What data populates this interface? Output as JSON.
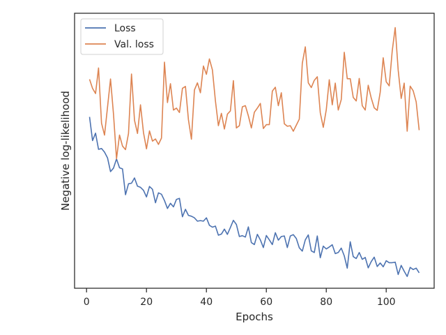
{
  "chart_data": {
    "type": "line",
    "title": "",
    "xlabel": "Epochs",
    "ylabel": "Negative log-likelihood",
    "xlim": [
      -4,
      116
    ],
    "ylim": [
      0,
      1
    ],
    "xticks": [
      0,
      20,
      40,
      60,
      80,
      100
    ],
    "yticks": [],
    "grid": false,
    "legend": "top-left",
    "series": [
      {
        "name": "Loss",
        "color": "#4c72b0",
        "x": [
          1,
          2,
          3,
          4,
          5,
          6,
          7,
          8,
          9,
          10,
          11,
          12,
          13,
          14,
          15,
          16,
          17,
          18,
          19,
          20,
          21,
          22,
          23,
          24,
          25,
          26,
          27,
          28,
          29,
          30,
          31,
          32,
          33,
          34,
          35,
          36,
          37,
          38,
          39,
          40,
          41,
          42,
          43,
          44,
          45,
          46,
          47,
          48,
          49,
          50,
          51,
          52,
          53,
          54,
          55,
          56,
          57,
          58,
          59,
          60,
          61,
          62,
          63,
          64,
          65,
          66,
          67,
          68,
          69,
          70,
          71,
          72,
          73,
          74,
          75,
          76,
          77,
          78,
          79,
          80,
          81,
          82,
          83,
          84,
          85,
          86,
          87,
          88,
          89,
          90,
          91,
          92,
          93,
          94,
          95,
          96,
          97,
          98,
          99,
          100,
          101,
          102,
          103,
          104,
          105,
          106,
          107,
          108,
          109,
          110,
          111
        ],
        "values": [
          0.623,
          0.537,
          0.564,
          0.505,
          0.508,
          0.495,
          0.474,
          0.424,
          0.437,
          0.47,
          0.438,
          0.434,
          0.34,
          0.38,
          0.382,
          0.401,
          0.371,
          0.367,
          0.356,
          0.332,
          0.37,
          0.36,
          0.311,
          0.347,
          0.342,
          0.319,
          0.29,
          0.309,
          0.296,
          0.323,
          0.327,
          0.26,
          0.287,
          0.265,
          0.262,
          0.256,
          0.244,
          0.246,
          0.244,
          0.256,
          0.229,
          0.222,
          0.226,
          0.193,
          0.197,
          0.215,
          0.196,
          0.221,
          0.247,
          0.232,
          0.188,
          0.191,
          0.186,
          0.223,
          0.166,
          0.159,
          0.196,
          0.176,
          0.148,
          0.192,
          0.176,
          0.159,
          0.202,
          0.175,
          0.188,
          0.19,
          0.148,
          0.19,
          0.195,
          0.181,
          0.147,
          0.135,
          0.176,
          0.194,
          0.136,
          0.13,
          0.19,
          0.111,
          0.153,
          0.143,
          0.15,
          0.158,
          0.126,
          0.13,
          0.146,
          0.118,
          0.073,
          0.169,
          0.115,
          0.108,
          0.13,
          0.105,
          0.112,
          0.074,
          0.097,
          0.113,
          0.079,
          0.092,
          0.078,
          0.1,
          0.093,
          0.093,
          0.095,
          0.05,
          0.083,
          0.062,
          0.043,
          0.076,
          0.068,
          0.073,
          0.056
        ]
      },
      {
        "name": "Val. loss",
        "color": "#dd8452",
        "x": [
          1,
          2,
          3,
          4,
          5,
          6,
          7,
          8,
          9,
          10,
          11,
          12,
          13,
          14,
          15,
          16,
          17,
          18,
          19,
          20,
          21,
          22,
          23,
          24,
          25,
          26,
          27,
          28,
          29,
          30,
          31,
          32,
          33,
          34,
          35,
          36,
          37,
          38,
          39,
          40,
          41,
          42,
          43,
          44,
          45,
          46,
          47,
          48,
          49,
          50,
          51,
          52,
          53,
          54,
          55,
          56,
          57,
          58,
          59,
          60,
          61,
          62,
          63,
          64,
          65,
          66,
          67,
          68,
          69,
          70,
          71,
          72,
          73,
          74,
          75,
          76,
          77,
          78,
          79,
          80,
          81,
          82,
          83,
          84,
          85,
          86,
          87,
          88,
          89,
          90,
          91,
          92,
          93,
          94,
          95,
          96,
          97,
          98,
          99,
          100,
          101,
          102,
          103,
          104,
          105,
          106,
          107,
          108,
          109,
          110,
          111
        ],
        "values": [
          0.76,
          0.727,
          0.708,
          0.801,
          0.6,
          0.557,
          0.659,
          0.761,
          0.632,
          0.471,
          0.557,
          0.517,
          0.504,
          0.563,
          0.779,
          0.611,
          0.563,
          0.667,
          0.566,
          0.507,
          0.572,
          0.535,
          0.543,
          0.523,
          0.546,
          0.822,
          0.675,
          0.744,
          0.648,
          0.655,
          0.639,
          0.727,
          0.734,
          0.613,
          0.542,
          0.721,
          0.747,
          0.711,
          0.808,
          0.778,
          0.834,
          0.794,
          0.682,
          0.591,
          0.636,
          0.579,
          0.633,
          0.645,
          0.755,
          0.583,
          0.591,
          0.66,
          0.664,
          0.627,
          0.583,
          0.64,
          0.655,
          0.672,
          0.581,
          0.595,
          0.595,
          0.717,
          0.731,
          0.664,
          0.711,
          0.598,
          0.589,
          0.591,
          0.571,
          0.593,
          0.615,
          0.818,
          0.878,
          0.747,
          0.73,
          0.756,
          0.769,
          0.638,
          0.585,
          0.649,
          0.758,
          0.667,
          0.746,
          0.648,
          0.686,
          0.858,
          0.762,
          0.762,
          0.694,
          0.681,
          0.763,
          0.664,
          0.648,
          0.738,
          0.692,
          0.656,
          0.647,
          0.713,
          0.838,
          0.751,
          0.736,
          0.862,
          0.948,
          0.793,
          0.69,
          0.746,
          0.571,
          0.735,
          0.718,
          0.678,
          0.575
        ]
      }
    ]
  }
}
